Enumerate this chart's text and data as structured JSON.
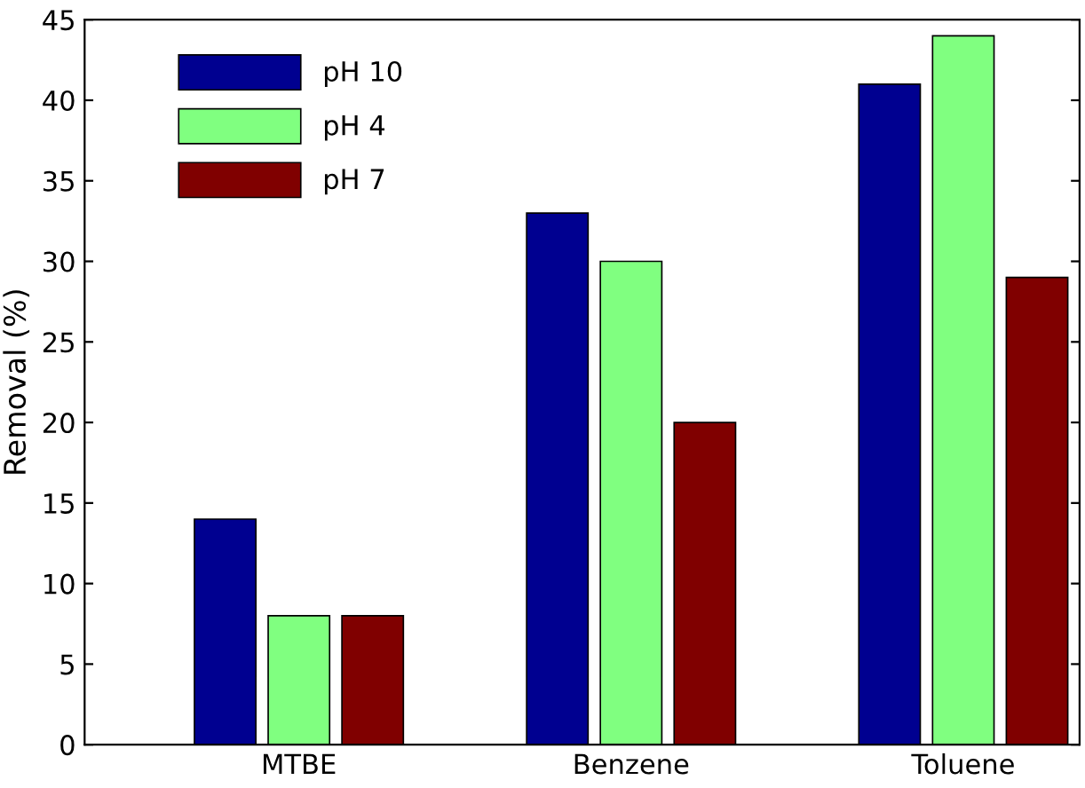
{
  "chart_data": {
    "type": "bar",
    "ylabel": "Removal (%)",
    "categories": [
      "MTBE",
      "Benzene",
      "Toluene"
    ],
    "series": [
      {
        "name": "pH 10",
        "color": "#000090",
        "values": [
          14,
          33,
          41
        ]
      },
      {
        "name": "pH 4",
        "color": "#80ff80",
        "values": [
          8,
          30,
          44
        ]
      },
      {
        "name": "pH 7",
        "color": "#800000",
        "values": [
          8,
          20,
          29
        ]
      }
    ],
    "ylim": [
      0,
      45
    ],
    "yticks": [
      0,
      5,
      10,
      15,
      20,
      25,
      30,
      35,
      40,
      45
    ],
    "grid": false,
    "legend": "top left"
  }
}
